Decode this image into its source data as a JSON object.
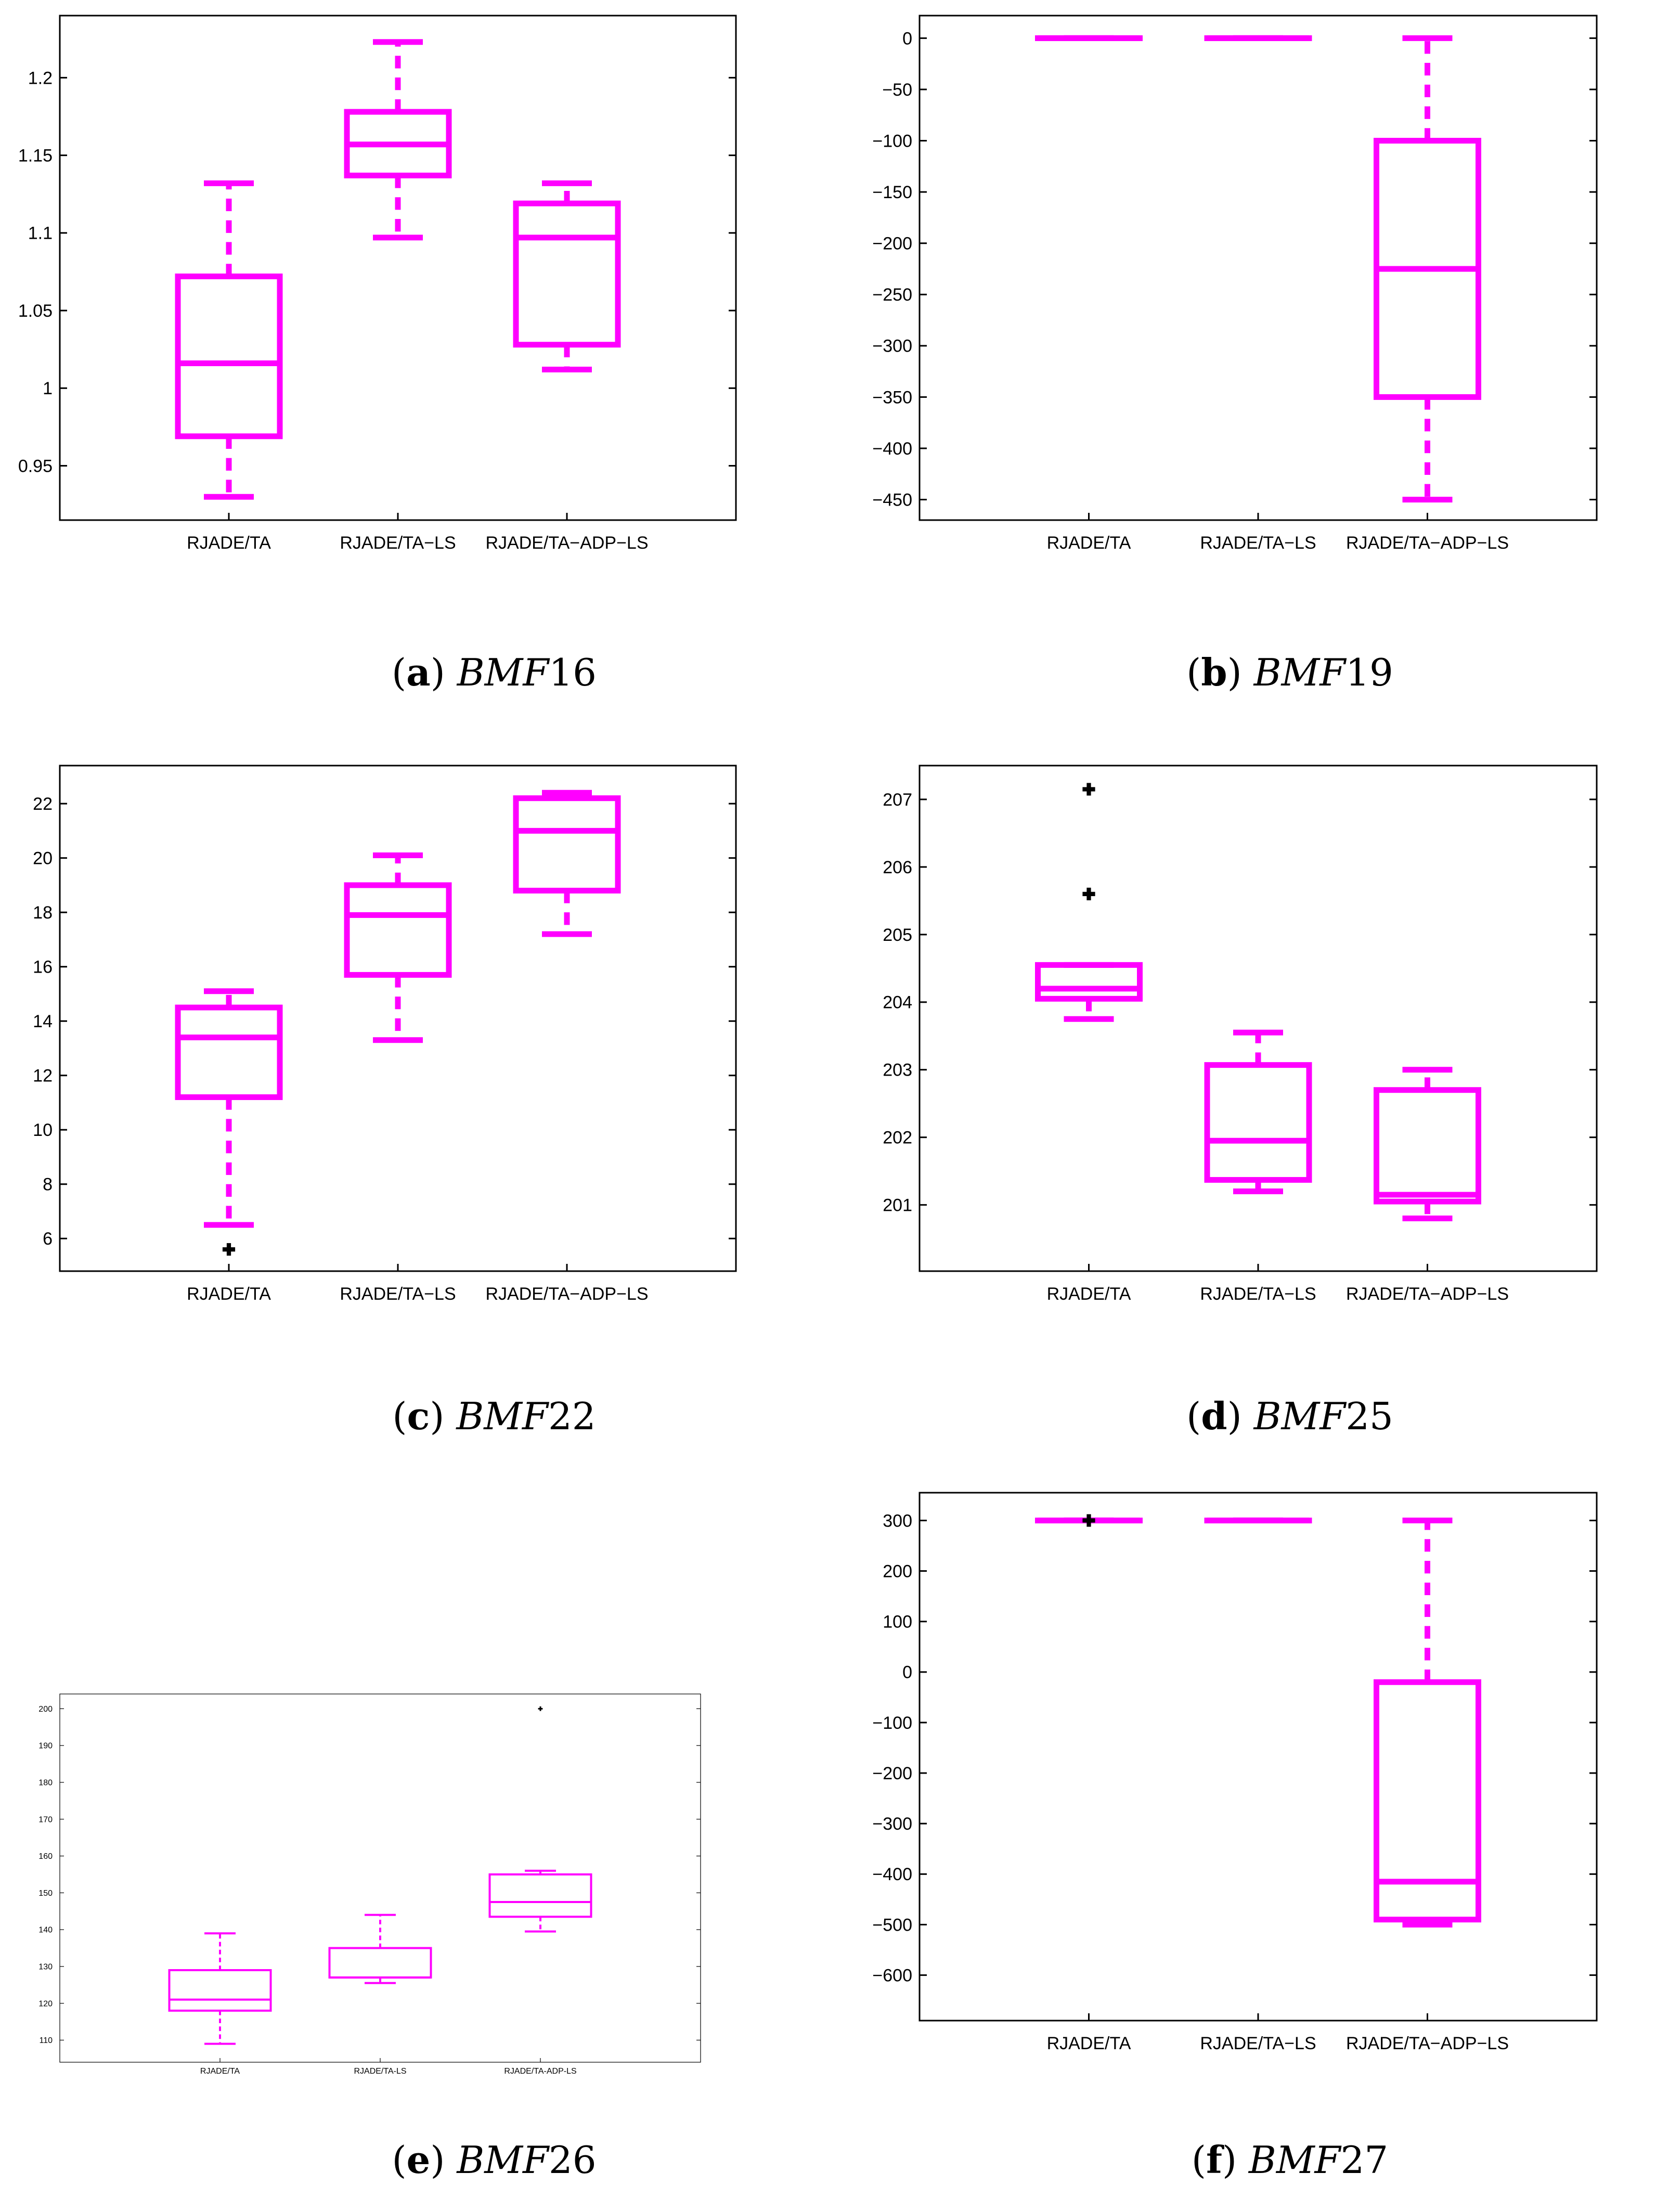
{
  "colors": {
    "box": "#ff00ff",
    "outlier": "#000000",
    "axes": "#000000",
    "background": "#ffffff"
  },
  "panels": [
    {
      "caption_letter": "a",
      "caption_name": "BMF",
      "caption_number": "16",
      "chart_data": {
        "type": "box",
        "categories": [
          "RJADE/TA",
          "RJADE/TA−LS",
          "RJADE/TA−ADP−LS"
        ],
        "ylim": [
          0.915,
          1.24
        ],
        "yticks": [
          0.95,
          1,
          1.05,
          1.1,
          1.15,
          1.2
        ],
        "ytick_labels": [
          "0.95",
          "1",
          "1.05",
          "1.1",
          "1.15",
          "1.2"
        ],
        "boxes": [
          {
            "whisker_low": 0.93,
            "q1": 0.969,
            "median": 1.016,
            "q3": 1.072,
            "whisker_high": 1.132,
            "outliers": []
          },
          {
            "whisker_low": 1.097,
            "q1": 1.137,
            "median": 1.157,
            "q3": 1.178,
            "whisker_high": 1.223,
            "outliers": []
          },
          {
            "whisker_low": 1.012,
            "q1": 1.028,
            "median": 1.097,
            "q3": 1.119,
            "whisker_high": 1.132,
            "outliers": []
          }
        ]
      }
    },
    {
      "caption_letter": "b",
      "caption_name": "BMF",
      "caption_number": "19",
      "chart_data": {
        "type": "box",
        "categories": [
          "RJADE/TA",
          "RJADE/TA−LS",
          "RJADE/TA−ADP−LS"
        ],
        "ylim": [
          -470,
          22
        ],
        "yticks": [
          0,
          -50,
          -100,
          -150,
          -200,
          -250,
          -300,
          -350,
          -400,
          -450
        ],
        "ytick_labels": [
          "0",
          "−50",
          "−100",
          "−150",
          "−200",
          "−250",
          "−300",
          "−350",
          "−400",
          "−450"
        ],
        "boxes": [
          {
            "whisker_low": 0,
            "q1": 0,
            "median": 0,
            "q3": 0,
            "whisker_high": 0,
            "outliers": []
          },
          {
            "whisker_low": 0,
            "q1": 0,
            "median": 0,
            "q3": 0,
            "whisker_high": 0,
            "outliers": []
          },
          {
            "whisker_low": -450,
            "q1": -350,
            "median": -225,
            "q3": -100,
            "whisker_high": 0,
            "outliers": []
          }
        ]
      }
    },
    {
      "caption_letter": "c",
      "caption_name": "BMF",
      "caption_number": "22",
      "chart_data": {
        "type": "box",
        "categories": [
          "RJADE/TA",
          "RJADE/TA−LS",
          "RJADE/TA−ADP−LS"
        ],
        "ylim": [
          4.8,
          23.4
        ],
        "yticks": [
          6,
          8,
          10,
          12,
          14,
          16,
          18,
          20,
          22
        ],
        "ytick_labels": [
          "6",
          "8",
          "10",
          "12",
          "14",
          "16",
          "18",
          "20",
          "22"
        ],
        "boxes": [
          {
            "whisker_low": 6.5,
            "q1": 11.2,
            "median": 13.4,
            "q3": 14.5,
            "whisker_high": 15.1,
            "outliers": [
              5.6
            ]
          },
          {
            "whisker_low": 13.3,
            "q1": 15.7,
            "median": 17.9,
            "q3": 19.0,
            "whisker_high": 20.1,
            "outliers": []
          },
          {
            "whisker_low": 17.2,
            "q1": 18.8,
            "median": 21.0,
            "q3": 22.2,
            "whisker_high": 22.4,
            "outliers": []
          }
        ]
      }
    },
    {
      "caption_letter": "d",
      "caption_name": "BMF",
      "caption_number": "25",
      "chart_data": {
        "type": "box",
        "categories": [
          "RJADE/TA",
          "RJADE/TA−LS",
          "RJADE/TA−ADP−LS"
        ],
        "ylim": [
          200.02,
          207.5
        ],
        "yticks": [
          201,
          202,
          203,
          204,
          205,
          206,
          207
        ],
        "ytick_labels": [
          "201",
          "202",
          "203",
          "204",
          "205",
          "206",
          "207"
        ],
        "boxes": [
          {
            "whisker_low": 203.75,
            "q1": 204.05,
            "median": 204.2,
            "q3": 204.55,
            "whisker_high": 204.55,
            "outliers": [
              205.6,
              207.15
            ]
          },
          {
            "whisker_low": 201.2,
            "q1": 201.37,
            "median": 201.95,
            "q3": 203.07,
            "whisker_high": 203.55,
            "outliers": []
          },
          {
            "whisker_low": 200.8,
            "q1": 201.05,
            "median": 201.15,
            "q3": 202.7,
            "whisker_high": 203.0,
            "outliers": []
          }
        ]
      }
    },
    {
      "caption_letter": "e",
      "caption_name": "BMF",
      "caption_number": "26",
      "chart_data": {
        "type": "box",
        "categories": [
          "RJADE/TA",
          "RJADE/TA-LS",
          "RJADE/TA-ADP-LS"
        ],
        "ylim": [
          104,
          204
        ],
        "yticks": [
          110,
          120,
          130,
          140,
          150,
          160,
          170,
          180,
          190,
          200
        ],
        "ytick_labels": [
          "110",
          "120",
          "130",
          "140",
          "150",
          "160",
          "170",
          "180",
          "190",
          "200"
        ],
        "boxes": [
          {
            "whisker_low": 109,
            "q1": 118,
            "median": 121,
            "q3": 129,
            "whisker_high": 139,
            "outliers": []
          },
          {
            "whisker_low": 125.5,
            "q1": 127,
            "median": 127,
            "q3": 135,
            "whisker_high": 144,
            "outliers": []
          },
          {
            "whisker_low": 139.5,
            "q1": 143.5,
            "median": 147.5,
            "q3": 155,
            "whisker_high": 156,
            "outliers": [
              200
            ]
          }
        ]
      }
    },
    {
      "caption_letter": "f",
      "caption_name": "BMF",
      "caption_number": "27",
      "chart_data": {
        "type": "box",
        "categories": [
          "RJADE/TA",
          "RJADE/TA−LS",
          "RJADE/TA−ADP−LS"
        ],
        "ylim": [
          -690,
          355
        ],
        "yticks": [
          300,
          200,
          100,
          0,
          -100,
          -200,
          -300,
          -400,
          -500,
          -600
        ],
        "ytick_labels": [
          "300",
          "200",
          "100",
          "0",
          "−100",
          "−200",
          "−300",
          "−400",
          "−500",
          "−600"
        ],
        "boxes": [
          {
            "whisker_low": 300,
            "q1": 300,
            "median": 300,
            "q3": 300,
            "whisker_high": 300,
            "outliers": [
              300
            ]
          },
          {
            "whisker_low": 300,
            "q1": 300,
            "median": 300,
            "q3": 300,
            "whisker_high": 300,
            "outliers": []
          },
          {
            "whisker_low": -500,
            "q1": -490,
            "median": -415,
            "q3": -20,
            "whisker_high": 300,
            "outliers": []
          }
        ]
      }
    }
  ]
}
